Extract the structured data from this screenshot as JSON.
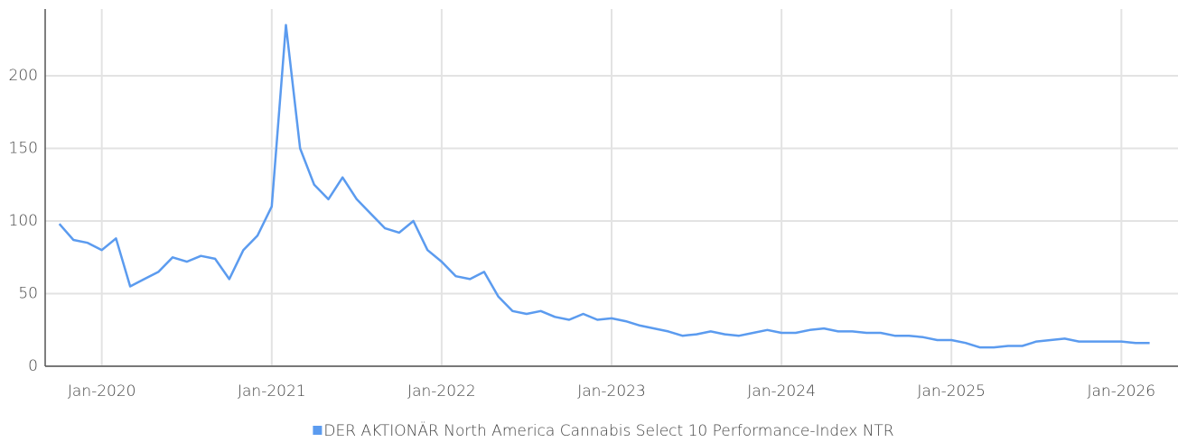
{
  "chart_data": {
    "type": "line",
    "x": [
      "Oct-2019",
      "Nov-2019",
      "Dec-2019",
      "Jan-2020",
      "Feb-2020",
      "Mar-2020",
      "Apr-2020",
      "May-2020",
      "Jun-2020",
      "Jul-2020",
      "Aug-2020",
      "Sep-2020",
      "Oct-2020",
      "Nov-2020",
      "Dec-2020",
      "Jan-2021",
      "Feb-2021",
      "Mar-2021",
      "Apr-2021",
      "May-2021",
      "Jun-2021",
      "Jul-2021",
      "Aug-2021",
      "Sep-2021",
      "Oct-2021",
      "Nov-2021",
      "Dec-2021",
      "Jan-2022",
      "Feb-2022",
      "Mar-2022",
      "Apr-2022",
      "May-2022",
      "Jun-2022",
      "Jul-2022",
      "Aug-2022",
      "Sep-2022",
      "Oct-2022",
      "Nov-2022",
      "Dec-2022",
      "Jan-2023",
      "Feb-2023",
      "Mar-2023",
      "Apr-2023",
      "May-2023",
      "Jun-2023",
      "Jul-2023",
      "Aug-2023",
      "Sep-2023",
      "Oct-2023",
      "Nov-2023",
      "Dec-2023",
      "Jan-2024",
      "Feb-2024",
      "Mar-2024",
      "Apr-2024",
      "May-2024",
      "Jun-2024",
      "Jul-2024",
      "Aug-2024",
      "Sep-2024",
      "Oct-2024",
      "Nov-2024",
      "Dec-2024",
      "Jan-2025",
      "Feb-2025",
      "Mar-2025",
      "Apr-2025",
      "May-2025",
      "Jun-2025",
      "Jul-2025",
      "Aug-2025",
      "Sep-2025",
      "Oct-2025",
      "Nov-2025",
      "Dec-2025",
      "Jan-2026",
      "Feb-2026",
      "Mar-2026"
    ],
    "series": [
      {
        "name": "DER AKTIONÄR North America Cannabis Select 10 Performance-Index NTR",
        "color": "#5b9bef",
        "values": [
          98,
          87,
          85,
          80,
          88,
          55,
          60,
          65,
          75,
          72,
          76,
          74,
          60,
          80,
          90,
          110,
          235,
          150,
          125,
          115,
          130,
          115,
          105,
          95,
          92,
          100,
          80,
          72,
          62,
          60,
          65,
          48,
          38,
          36,
          38,
          34,
          32,
          36,
          32,
          33,
          31,
          28,
          26,
          24,
          21,
          22,
          24,
          22,
          21,
          23,
          25,
          23,
          23,
          25,
          26,
          24,
          24,
          23,
          23,
          21,
          21,
          20,
          18,
          18,
          16,
          13,
          13,
          14,
          14,
          17,
          18,
          19,
          17,
          17,
          17,
          17,
          16,
          16
        ]
      }
    ],
    "xlim": [
      "Sep-2019",
      "May-2026"
    ],
    "xticks": [
      "Jan-2020",
      "Jan-2021",
      "Jan-2022",
      "Jan-2023",
      "Jan-2024",
      "Jan-2025",
      "Jan-2026"
    ],
    "ylim": [
      0,
      246
    ],
    "yticks": [
      0,
      50,
      100,
      150,
      200
    ],
    "grid": true,
    "legend": "bottom"
  }
}
